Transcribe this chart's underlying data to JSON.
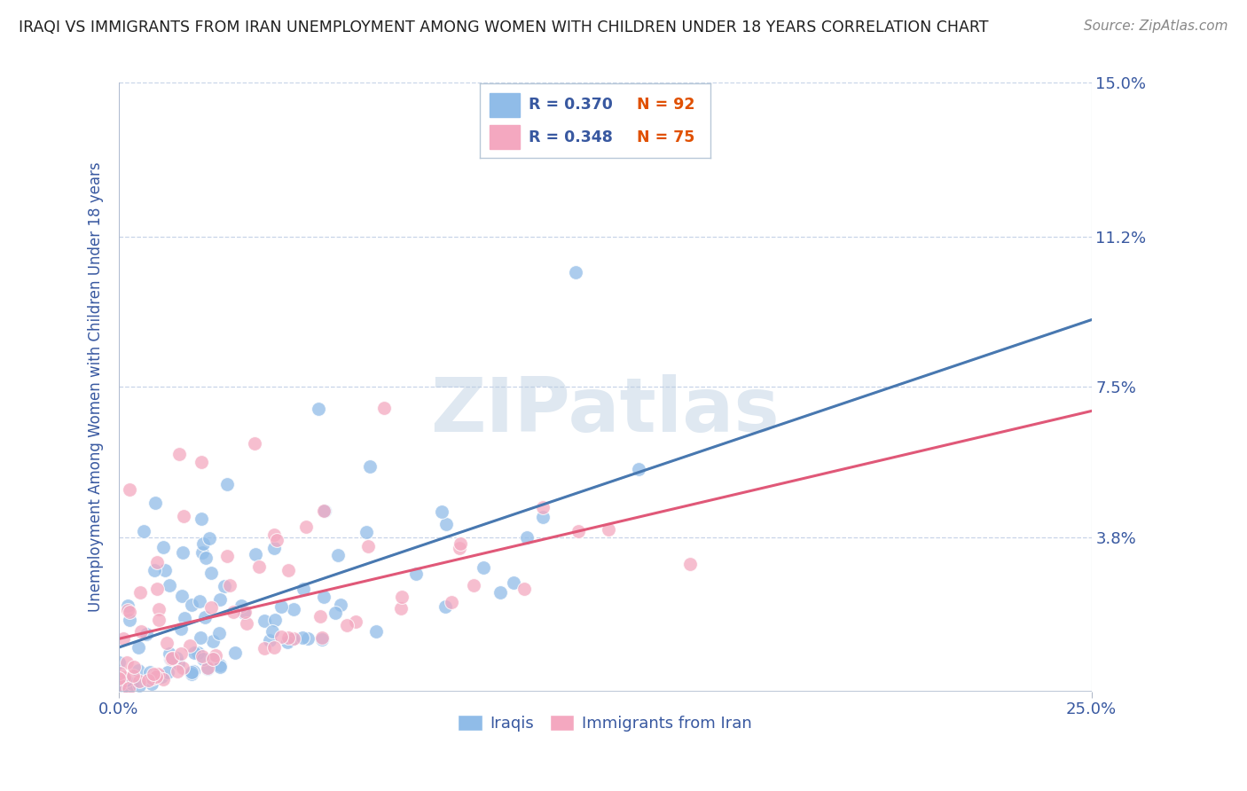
{
  "title": "IRAQI VS IMMIGRANTS FROM IRAN UNEMPLOYMENT AMONG WOMEN WITH CHILDREN UNDER 18 YEARS CORRELATION CHART",
  "source": "Source: ZipAtlas.com",
  "ylabel": "Unemployment Among Women with Children Under 18 years",
  "xlim": [
    0.0,
    0.25
  ],
  "ylim": [
    0.0,
    0.15
  ],
  "ytick_vals": [
    0.0,
    0.038,
    0.075,
    0.112,
    0.15
  ],
  "ytick_labels": [
    "",
    "3.8%",
    "7.5%",
    "11.2%",
    "15.0%"
  ],
  "xtick_vals": [
    0.0,
    0.25
  ],
  "xtick_labels": [
    "0.0%",
    "25.0%"
  ],
  "iraqis_label": "Iraqis",
  "iran_label": "Immigrants from Iran",
  "blue_color": "#90bce8",
  "pink_color": "#f4a8c0",
  "blue_line_color": "#4878b0",
  "pink_line_color": "#e05878",
  "R_iraq": 0.37,
  "N_iraq": 92,
  "R_iran": 0.348,
  "N_iran": 75,
  "watermark": "ZIPatlas",
  "background_color": "#ffffff",
  "grid_color": "#c8d4e8",
  "title_color": "#202020",
  "axis_label_color": "#3858a0",
  "tick_label_color": "#3858a0",
  "legend_label_R_iraq": "R = 0.370",
  "legend_label_N_iraq": "N = 92",
  "legend_label_R_iran": "R = 0.348",
  "legend_label_N_iran": "N = 75"
}
